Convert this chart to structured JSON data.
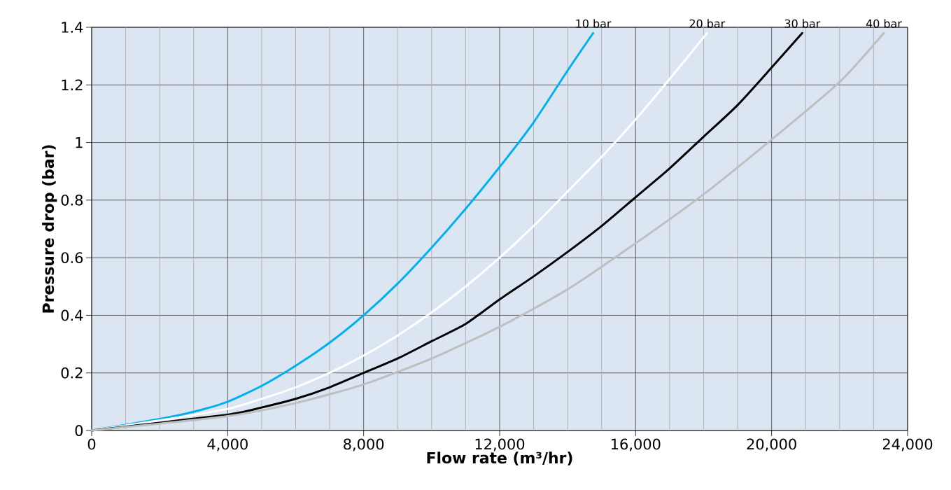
{
  "chart_data": {
    "type": "line",
    "xlabel": "Flow rate (m³/hr)",
    "ylabel": "Pressure drop (bar)",
    "xlim": [
      0,
      24000
    ],
    "ylim": [
      0,
      1.4
    ],
    "xticks": [
      {
        "value": 0,
        "label": "0"
      },
      {
        "value": 1000,
        "label": null
      },
      {
        "value": 2000,
        "label": null
      },
      {
        "value": 3000,
        "label": null
      },
      {
        "value": 4000,
        "label": "4,000"
      },
      {
        "value": 5000,
        "label": null
      },
      {
        "value": 6000,
        "label": null
      },
      {
        "value": 7000,
        "label": null
      },
      {
        "value": 8000,
        "label": "8,000"
      },
      {
        "value": 9000,
        "label": null
      },
      {
        "value": 10000,
        "label": null
      },
      {
        "value": 11000,
        "label": null
      },
      {
        "value": 12000,
        "label": "12,000"
      },
      {
        "value": 13000,
        "label": null
      },
      {
        "value": 14000,
        "label": null
      },
      {
        "value": 15000,
        "label": null
      },
      {
        "value": 16000,
        "label": "16,000"
      },
      {
        "value": 17000,
        "label": null
      },
      {
        "value": 18000,
        "label": null
      },
      {
        "value": 19000,
        "label": null
      },
      {
        "value": 20000,
        "label": "20,000"
      },
      {
        "value": 21000,
        "label": null
      },
      {
        "value": 22000,
        "label": null
      },
      {
        "value": 23000,
        "label": null
      },
      {
        "value": 24000,
        "label": "24,000"
      }
    ],
    "yticks": [
      0,
      0.2,
      0.4,
      0.6,
      0.8,
      1,
      1.2,
      1.4
    ],
    "grid": true,
    "legend": false,
    "marker": "none",
    "line_style": "solid",
    "series": [
      {
        "name": "10 bar",
        "color": "#00b0f0",
        "x": [
          0,
          2000,
          3000,
          4000,
          5000,
          6000,
          7000,
          8000,
          9000,
          10000,
          11000,
          12000,
          13000,
          14000,
          14750
        ],
        "values": [
          0,
          0.04,
          0.065,
          0.1,
          0.155,
          0.225,
          0.305,
          0.4,
          0.51,
          0.635,
          0.77,
          0.915,
          1.07,
          1.25,
          1.38
        ]
      },
      {
        "name": "20 bar",
        "color": "#ffffff",
        "x": [
          0,
          2000,
          4000,
          5000,
          6000,
          7000,
          8000,
          9000,
          10000,
          11000,
          12000,
          13000,
          14000,
          15000,
          16000,
          17000,
          18100
        ],
        "values": [
          0,
          0.035,
          0.075,
          0.11,
          0.15,
          0.2,
          0.26,
          0.33,
          0.41,
          0.5,
          0.6,
          0.71,
          0.83,
          0.95,
          1.08,
          1.22,
          1.38
        ]
      },
      {
        "name": "30 bar",
        "color": "#000000",
        "x": [
          0,
          4000,
          5000,
          6000,
          7000,
          8000,
          9000,
          10000,
          11000,
          12000,
          13000,
          14000,
          15000,
          16000,
          17000,
          18000,
          19000,
          20000,
          20900
        ],
        "values": [
          0,
          0.055,
          0.08,
          0.11,
          0.15,
          0.2,
          0.25,
          0.31,
          0.37,
          0.455,
          0.535,
          0.62,
          0.71,
          0.81,
          0.91,
          1.02,
          1.13,
          1.26,
          1.38
        ]
      },
      {
        "name": "40 bar",
        "color": "#bfbfbf",
        "x": [
          0,
          4000,
          6000,
          8000,
          10000,
          12000,
          14000,
          16000,
          18000,
          20000,
          22000,
          23300
        ],
        "values": [
          0,
          0.05,
          0.095,
          0.16,
          0.25,
          0.36,
          0.49,
          0.65,
          0.82,
          1.01,
          1.21,
          1.38
        ]
      }
    ]
  }
}
